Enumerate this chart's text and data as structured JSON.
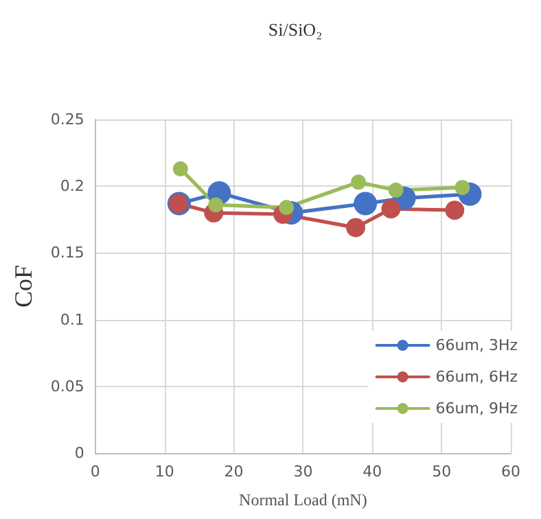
{
  "chart_data": {
    "type": "line",
    "title": "Si/SiO₂",
    "xlabel": "Normal Load (mN)",
    "ylabel": "CoF",
    "xlim": [
      0,
      60
    ],
    "xticks": [
      0,
      10,
      20,
      30,
      40,
      50,
      60
    ],
    "ylim": [
      0,
      0.25
    ],
    "yticks": [
      0,
      0.05,
      0.1,
      0.15,
      0.2,
      0.25
    ],
    "grid": true,
    "legend": "bottom right",
    "marker": "circle",
    "line_style": "solid",
    "series": [
      {
        "name": "66um, 3Hz",
        "color": "#4472c4",
        "x": [
          12.1,
          17.9,
          28.3,
          39.0,
          44.6,
          54.1
        ],
        "values": [
          0.187,
          0.195,
          0.18,
          0.187,
          0.191,
          0.194
        ]
      },
      {
        "name": "66um, 6Hz",
        "color": "#c0504d",
        "x": [
          12.0,
          17.1,
          27.1,
          37.6,
          42.7,
          51.9
        ],
        "values": [
          0.187,
          0.18,
          0.179,
          0.169,
          0.183,
          0.182
        ]
      },
      {
        "name": "66um, 9Hz",
        "color": "#9bbb59",
        "x": [
          12.3,
          17.4,
          27.6,
          38.0,
          43.4,
          53.0
        ],
        "values": [
          0.213,
          0.186,
          0.184,
          0.203,
          0.197,
          0.199
        ]
      }
    ]
  }
}
